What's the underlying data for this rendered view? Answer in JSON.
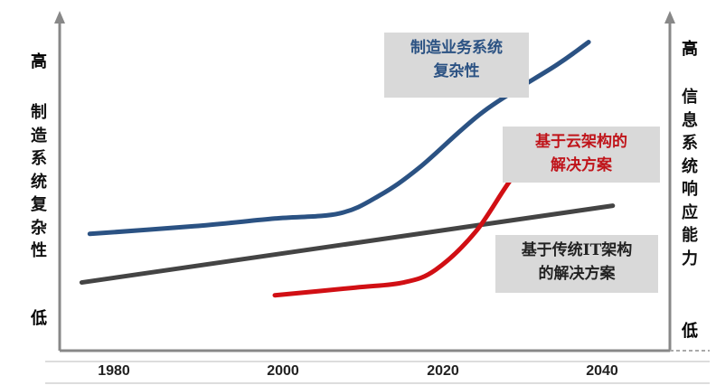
{
  "chart_data": {
    "type": "line",
    "x_ticks": [
      "1980",
      "2000",
      "2020",
      "2040"
    ],
    "left_axis": {
      "label": "制\n造\n系\n统\n复\n杂\n性",
      "high": "高",
      "low": "低"
    },
    "right_axis": {
      "label": "信\n息\n系\n统\n响\n应\n能\n力",
      "high": "高",
      "low": "低"
    },
    "series": [
      {
        "name": "制造业务系统\n复杂性",
        "color": "#2b5283",
        "points": [
          [
            1977,
            3.4
          ],
          [
            1990,
            3.7
          ],
          [
            2000,
            4.0
          ],
          [
            2008,
            4.2
          ],
          [
            2013,
            4.9
          ],
          [
            2018,
            6.0
          ],
          [
            2026,
            8.2
          ],
          [
            2035,
            10.0
          ],
          [
            2039,
            10.9
          ]
        ]
      },
      {
        "name": "基于云架构的\n解决方案",
        "color": "#d10f14",
        "points": [
          [
            2000,
            1.0
          ],
          [
            2010,
            1.3
          ],
          [
            2016,
            1.5
          ],
          [
            2020,
            2.0
          ],
          [
            2025,
            3.5
          ],
          [
            2030,
            5.8
          ],
          [
            2035,
            7.3
          ]
        ]
      },
      {
        "name": "基于传统IT架构\n的解决方案",
        "color": "#444444",
        "points": [
          [
            1976,
            1.5
          ],
          [
            2042,
            4.5
          ]
        ]
      }
    ]
  },
  "colors": {
    "high_low": "#c0141a",
    "callout_bg": "#d9d9d9"
  }
}
